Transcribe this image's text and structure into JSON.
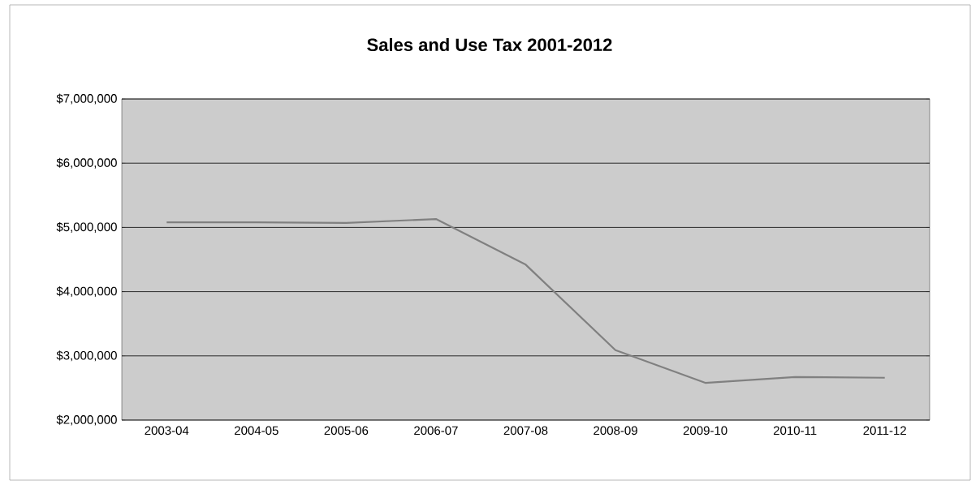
{
  "chart_data": {
    "type": "line",
    "title": "Sales and Use Tax  2001-2012",
    "categories": [
      "2003-04",
      "2004-05",
      "2005-06",
      "2006-07",
      "2007-08",
      "2008-09",
      "2009-10",
      "2010-11",
      "2011-12"
    ],
    "values": [
      5080000,
      5080000,
      5070000,
      5130000,
      4420000,
      3090000,
      2580000,
      2670000,
      2660000
    ],
    "color": "#808080",
    "marker": "none",
    "line_style": "solid",
    "grid": "y",
    "ylim": [
      2000000,
      7000000
    ],
    "yticks": [
      {
        "value": 2000000,
        "label": "$2,000,000"
      },
      {
        "value": 3000000,
        "label": "$3,000,000"
      },
      {
        "value": 4000000,
        "label": "$4,000,000"
      },
      {
        "value": 5000000,
        "label": "$5,000,000"
      },
      {
        "value": 6000000,
        "label": "$6,000,000"
      },
      {
        "value": 7000000,
        "label": "$7,000,000"
      }
    ]
  }
}
